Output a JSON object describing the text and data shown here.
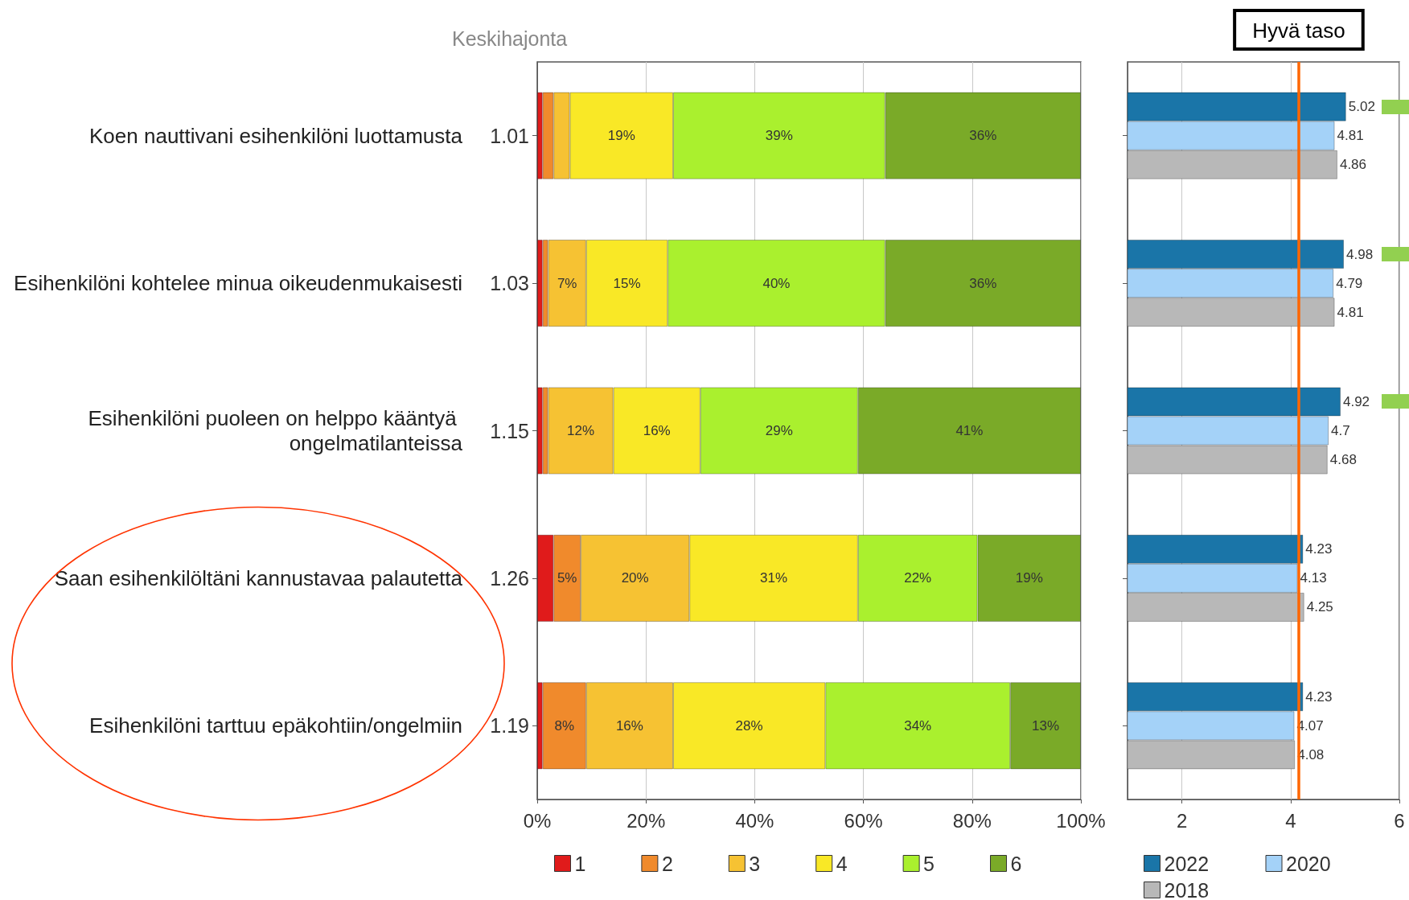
{
  "chart_data": [
    {
      "type": "bar",
      "orientation": "horizontal",
      "stacked": true,
      "categories": [
        "Koen nauttivani esihenkilöni luottamusta",
        "Esihenkilöni kohtelee minua oikeudenmukaisesti",
        "Esihenkilöni puoleen on helppo kääntyä ongelmatilanteissa",
        "Saan esihenkilöltäni kannustavaa palautetta",
        "Esihenkilöni tarttuu epäkohtiin/ongelmiin"
      ],
      "y2_categories": [
        "1.01",
        "1.03",
        "1.15",
        "1.26",
        "1.19"
      ],
      "y2label": "Keskihajonta",
      "series": [
        {
          "name": "1",
          "color": "#e01b1b",
          "values": [
            1,
            1,
            1,
            3,
            1
          ]
        },
        {
          "name": "2",
          "color": "#f08a2c",
          "values": [
            2,
            1,
            1,
            5,
            8
          ],
          "value_labels": [
            null,
            null,
            null,
            "5%",
            "8%"
          ]
        },
        {
          "name": "3",
          "color": "#f6c233",
          "values": [
            3,
            7,
            12,
            20,
            16
          ],
          "value_labels": [
            null,
            "7%",
            "12%",
            "20%",
            "16%"
          ]
        },
        {
          "name": "4",
          "color": "#f9e826",
          "values": [
            19,
            15,
            16,
            31,
            28
          ],
          "value_labels": [
            "19%",
            "15%",
            "16%",
            "31%",
            "28%"
          ]
        },
        {
          "name": "5",
          "color": "#aaf02e",
          "values": [
            39,
            40,
            29,
            22,
            34
          ],
          "value_labels": [
            "39%",
            "40%",
            "29%",
            "22%",
            "34%"
          ]
        },
        {
          "name": "6",
          "color": "#7aaa28",
          "values": [
            36,
            36,
            41,
            19,
            13
          ],
          "value_labels": [
            "36%",
            "36%",
            "41%",
            "19%",
            "13%"
          ]
        }
      ],
      "xlim": [
        0,
        100
      ],
      "xticks": [
        {
          "value": 0,
          "label": "0%"
        },
        {
          "value": 20,
          "label": "20%"
        },
        {
          "value": 40,
          "label": "40%"
        },
        {
          "value": 60,
          "label": "60%"
        },
        {
          "value": 80,
          "label": "80%"
        },
        {
          "value": 100,
          "label": "100%"
        }
      ],
      "grid": "x",
      "legend": "bottom"
    },
    {
      "type": "bar",
      "orientation": "horizontal",
      "categories": [
        null,
        null,
        null,
        null,
        null
      ],
      "series": [
        {
          "name": "2022",
          "color": "#1a75a8",
          "values": [
            5.02,
            4.98,
            4.92,
            4.23,
            4.23
          ]
        },
        {
          "name": "2020",
          "color": "#a4d2f8",
          "values": [
            4.81,
            4.79,
            4.7,
            4.13,
            4.07
          ]
        },
        {
          "name": "2018",
          "color": "#b8b8b8",
          "values": [
            4.86,
            4.81,
            4.68,
            4.25,
            4.08
          ]
        }
      ],
      "xlim": [
        1,
        6
      ],
      "xticks": [
        2,
        4,
        6
      ],
      "tick_labels": "x",
      "data_labels": true,
      "grid": "x",
      "legend": "bottom",
      "ref_lines": [
        {
          "axis": "x",
          "value": 4.15,
          "label": "Hyvä taso",
          "color": "#ff6600"
        }
      ]
    }
  ]
}
